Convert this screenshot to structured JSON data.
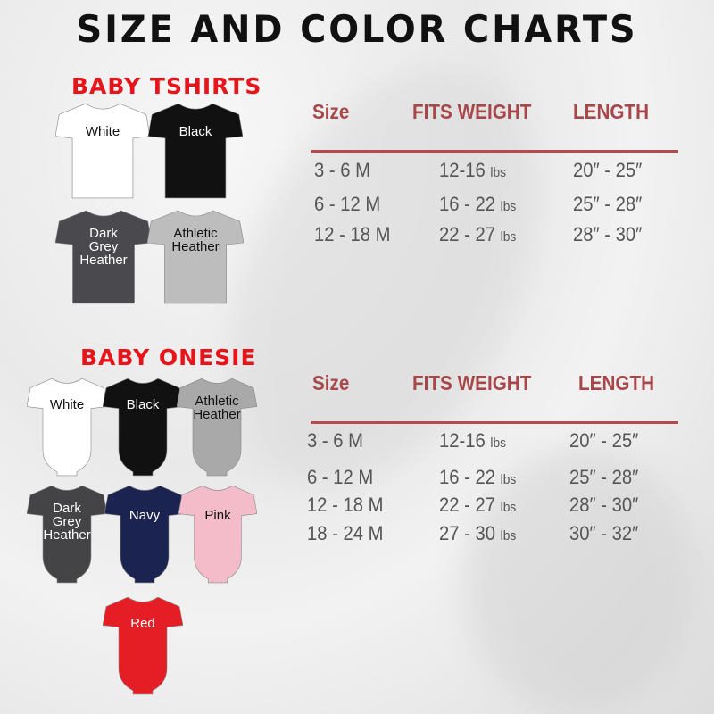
{
  "title": "SIZE AND COLOR CHARTS",
  "tshirts": {
    "heading": "BABY TSHIRTS",
    "items": [
      {
        "label": "White",
        "color": "#ffffff",
        "text": "#111111"
      },
      {
        "label": "Black",
        "color": "#111111",
        "text": "#ffffff"
      },
      {
        "label": "Dark Grey Heather",
        "color": "#4a4a4e",
        "text": "#ffffff"
      },
      {
        "label": "Athletic Heather",
        "color": "#bdbdbd",
        "text": "#111111"
      }
    ]
  },
  "onesies": {
    "heading": "BABY ONESIE",
    "items": [
      {
        "label": "White",
        "color": "#ffffff",
        "text": "#111111"
      },
      {
        "label": "Black",
        "color": "#111111",
        "text": "#ffffff"
      },
      {
        "label": "Athletic Heather",
        "color": "#a9a9a9",
        "text": "#111111"
      },
      {
        "label": "Dark Grey Heather",
        "color": "#444446",
        "text": "#ffffff"
      },
      {
        "label": "Navy",
        "color": "#1b2350",
        "text": "#ffffff"
      },
      {
        "label": "Pink",
        "color": "#f3bcc8",
        "text": "#111111"
      },
      {
        "label": "Red",
        "color": "#e51d24",
        "text": "#ffffff"
      }
    ]
  },
  "tables": [
    {
      "headers": [
        "Size",
        "FITS WEIGHT",
        "LENGTH"
      ],
      "rows": [
        [
          "3 - 6 M",
          "12-16",
          "lbs",
          "20″ - 25″"
        ],
        [
          "6 - 12 M",
          "16 - 22",
          "lbs",
          "25″ - 28″"
        ],
        [
          "12 - 18 M",
          "22 - 27",
          "lbs",
          "28″ - 30″"
        ]
      ]
    },
    {
      "headers": [
        "Size",
        "FITS WEIGHT",
        "LENGTH"
      ],
      "rows": [
        [
          "3 - 6 M",
          "12-16",
          "lbs",
          "20″ - 25″"
        ],
        [
          "6 - 12 M",
          "16 - 22",
          "lbs",
          "25″ - 28″"
        ],
        [
          "12 - 18 M",
          "22 - 27",
          "lbs",
          "28″ - 30″"
        ],
        [
          "18 - 24 M",
          "27 - 30",
          "lbs",
          "30″ - 32″"
        ]
      ]
    }
  ],
  "colors": {
    "header": "#a8474a",
    "rule": "#b34c4f",
    "heading": "#e8141b"
  }
}
